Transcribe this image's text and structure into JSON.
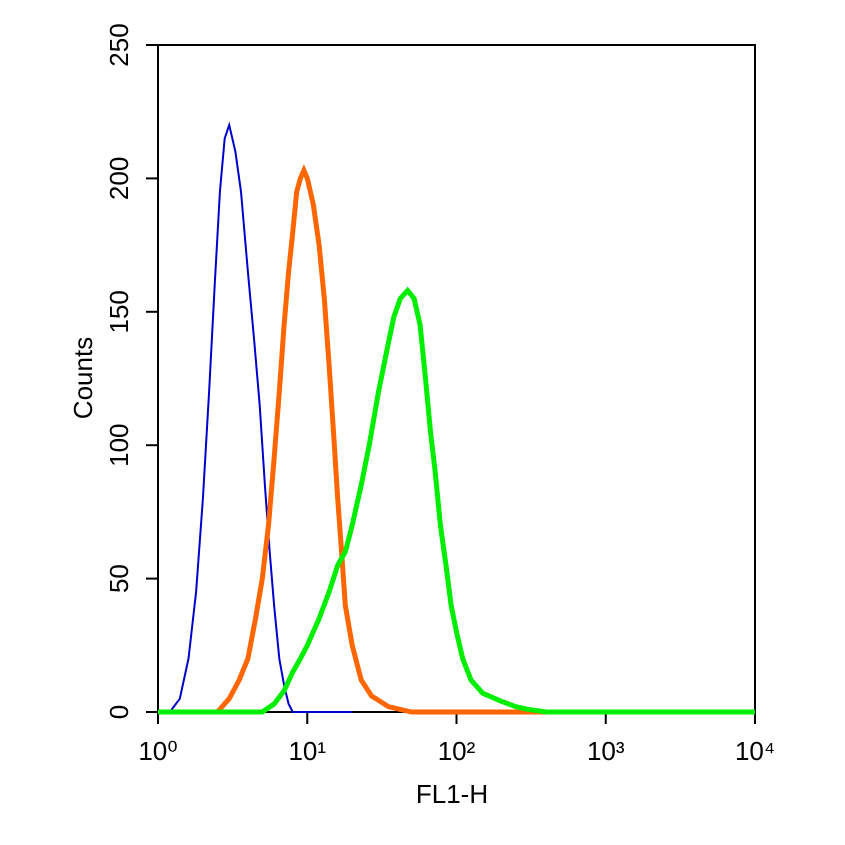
{
  "chart_data": {
    "type": "line",
    "xlabel": "FL1-H",
    "ylabel": "Counts",
    "xscale": "log",
    "xlim": [
      1,
      10000
    ],
    "ylim": [
      0,
      250
    ],
    "xticks": [
      {
        "value": 1,
        "label": "10⁰"
      },
      {
        "value": 10,
        "label": "10¹"
      },
      {
        "value": 100,
        "label": "10²"
      },
      {
        "value": 1000,
        "label": "10³"
      },
      {
        "value": 10000,
        "label": "10⁴"
      }
    ],
    "yticks": [
      0,
      50,
      100,
      150,
      200,
      250
    ],
    "series": [
      {
        "color": "#0000cc",
        "width": 2,
        "x": [
          1.2,
          1.4,
          1.6,
          1.8,
          2.0,
          2.2,
          2.4,
          2.6,
          2.8,
          3.0,
          3.3,
          3.6,
          4.0,
          4.4,
          4.8,
          5.2,
          5.6,
          6.0,
          6.5,
          7.0,
          7.5,
          8,
          20
        ],
        "values": [
          0,
          5,
          20,
          45,
          80,
          120,
          160,
          195,
          215,
          220,
          210,
          195,
          165,
          140,
          115,
          85,
          60,
          40,
          20,
          10,
          3,
          0,
          0
        ]
      },
      {
        "color": "#ff6600",
        "width": 5,
        "x": [
          2.5,
          3,
          3.5,
          4,
          4.5,
          5,
          5.5,
          6,
          6.5,
          7,
          7.5,
          8,
          8.5,
          9,
          9.5,
          10,
          11,
          12,
          13,
          14,
          15,
          16,
          17,
          18,
          20,
          23,
          27,
          35,
          50,
          10000
        ],
        "values": [
          0,
          5,
          12,
          20,
          35,
          50,
          70,
          95,
          120,
          145,
          165,
          180,
          195,
          200,
          203,
          200,
          190,
          175,
          155,
          130,
          105,
          80,
          60,
          40,
          25,
          12,
          6,
          2,
          0,
          0
        ]
      },
      {
        "color": "#00ee00",
        "width": 5,
        "x": [
          1,
          5,
          6,
          7,
          8,
          9,
          10,
          12,
          14,
          16,
          18,
          20,
          23,
          26,
          30,
          34,
          38,
          42,
          47,
          52,
          57,
          62,
          67,
          72,
          78,
          85,
          92,
          100,
          110,
          125,
          150,
          200,
          250,
          300,
          400,
          10000
        ],
        "values": [
          0,
          0,
          3,
          8,
          15,
          20,
          25,
          35,
          45,
          55,
          60,
          70,
          85,
          100,
          120,
          135,
          148,
          155,
          158,
          155,
          145,
          125,
          105,
          90,
          70,
          55,
          40,
          30,
          20,
          12,
          7,
          4,
          2,
          1,
          0,
          0
        ]
      }
    ]
  }
}
